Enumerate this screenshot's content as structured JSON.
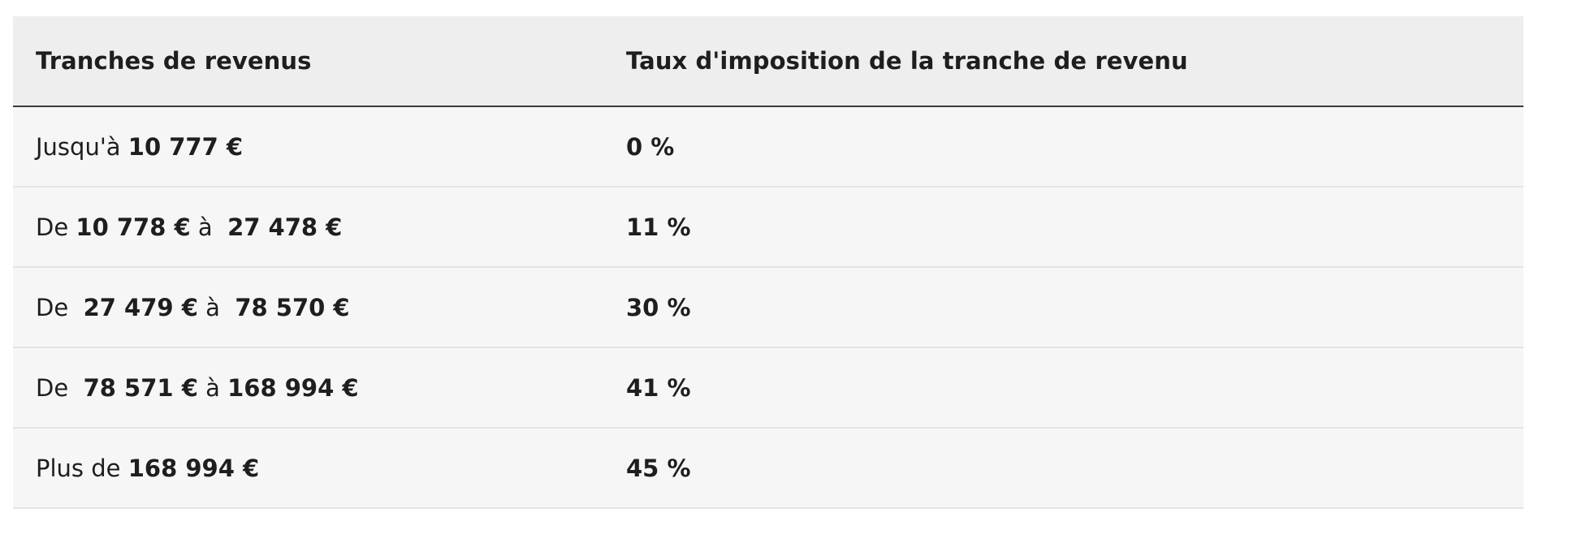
{
  "table": {
    "headers": [
      "Tranches de revenus",
      "Taux d'imposition de la tranche de revenu"
    ],
    "rows": [
      {
        "bracket": {
          "prefix": "Jusqu'à ",
          "from": "10 777 €",
          "mid": "",
          "to": ""
        },
        "rate": "0 %"
      },
      {
        "bracket": {
          "prefix": "De ",
          "from": "10 778 €",
          "mid": " à  ",
          "to": "27 478 €"
        },
        "rate": "11 %"
      },
      {
        "bracket": {
          "prefix": "De  ",
          "from": "27 479 €",
          "mid": " à  ",
          "to": "78 570 €"
        },
        "rate": "30 %"
      },
      {
        "bracket": {
          "prefix": "De  ",
          "from": "78 571 €",
          "mid": " à ",
          "to": "168 994 €"
        },
        "rate": "41 %"
      },
      {
        "bracket": {
          "prefix": "Plus de ",
          "from": "168 994 €",
          "mid": "",
          "to": ""
        },
        "rate": "45 %"
      }
    ]
  }
}
